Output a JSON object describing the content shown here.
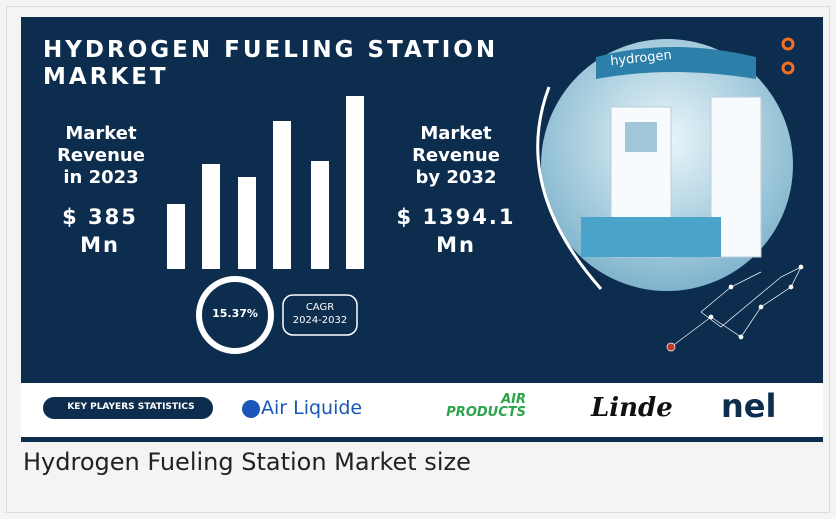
{
  "banner": {
    "title": "HYDROGEN FUELING STATION MARKET",
    "left": {
      "label": "Market\nRevenue\nin 2023",
      "value": "$ 385\nMn"
    },
    "right": {
      "label": "Market\nRevenue\nby 2032",
      "value": "$ 1394.1\nMn"
    },
    "cagr": {
      "rate": "15.37%",
      "label": "CAGR\n2024-2032"
    },
    "image_sign": "hydrogen"
  },
  "players": {
    "label": "KEY PLAYERS STATISTICS",
    "logos": [
      "Air Liquide",
      "AIR\nPRODUCTS",
      "Linde",
      "nel"
    ]
  },
  "caption": "Hydrogen Fueling Station Market size"
}
